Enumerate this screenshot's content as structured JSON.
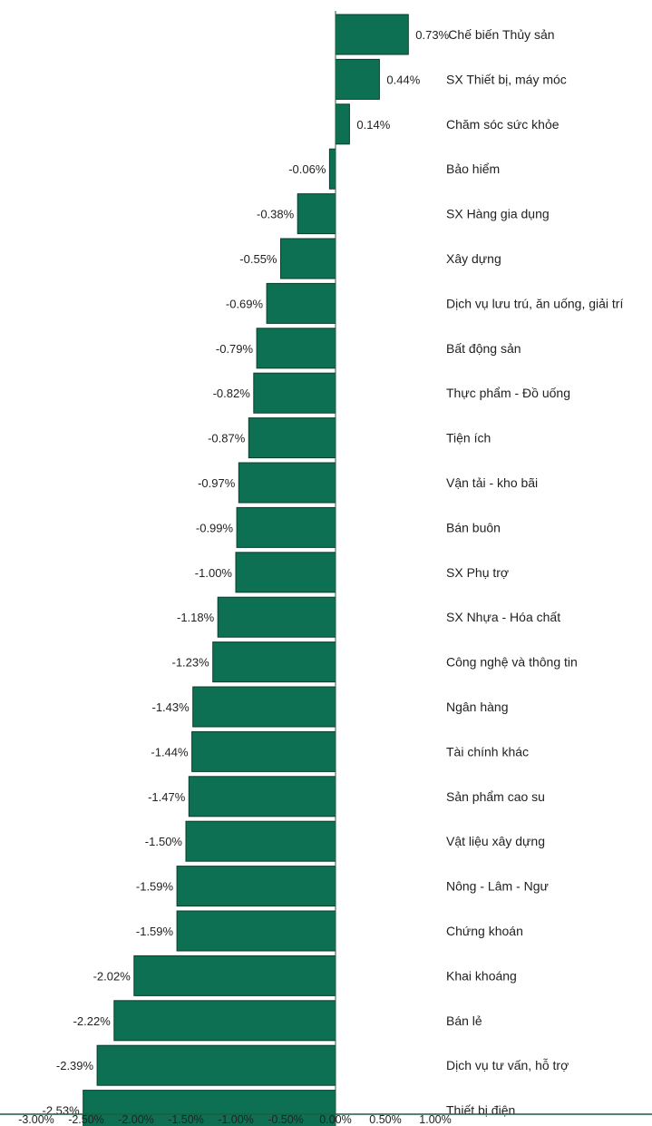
{
  "chart_data": {
    "type": "bar",
    "orientation": "horizontal",
    "categories": [
      "Chế biến Thủy sản",
      "SX Thiết bị, máy móc",
      "Chăm sóc sức khỏe",
      "Bảo hiểm",
      "SX Hàng gia dụng",
      "Xây dựng",
      "Dịch vụ lưu trú, ăn uống, giải trí",
      "Bất động sản",
      "Thực phẩm - Đồ uống",
      "Tiện ích",
      "Vận tải - kho bãi",
      "Bán buôn",
      "SX Phụ trợ",
      "SX Nhựa - Hóa chất",
      "Công nghệ và thông tin",
      "Ngân hàng",
      "Tài chính khác",
      "Sản phẩm cao su",
      "Vật liệu xây dựng",
      "Nông - Lâm - Ngư",
      "Chứng khoán",
      "Khai khoáng",
      "Bán lẻ",
      "Dịch vụ tư vấn, hỗ trợ",
      "Thiết bị điện"
    ],
    "values": [
      0.73,
      0.44,
      0.14,
      -0.06,
      -0.38,
      -0.55,
      -0.69,
      -0.79,
      -0.82,
      -0.87,
      -0.97,
      -0.99,
      -1.0,
      -1.18,
      -1.23,
      -1.43,
      -1.44,
      -1.47,
      -1.5,
      -1.59,
      -1.59,
      -2.02,
      -2.22,
      -2.39,
      -2.53
    ],
    "value_labels": [
      "0.73%",
      "0.44%",
      "0.14%",
      "-0.06%",
      "-0.38%",
      "-0.55%",
      "-0.69%",
      "-0.79%",
      "-0.82%",
      "-0.87%",
      "-0.97%",
      "-0.99%",
      "-1.00%",
      "-1.18%",
      "-1.23%",
      "-1.43%",
      "-1.44%",
      "-1.47%",
      "-1.50%",
      "-1.59%",
      "-1.59%",
      "-2.02%",
      "-2.22%",
      "-2.39%",
      "-2.53%"
    ],
    "x_ticks": [
      -3.0,
      -2.5,
      -2.0,
      -1.5,
      -1.0,
      -0.5,
      0.0,
      0.5,
      1.0
    ],
    "x_tick_labels": [
      "-3.00%",
      "-2.50%",
      "-2.00%",
      "-1.50%",
      "-1.00%",
      "-0.50%",
      "0.00%",
      "0.50%",
      "1.00%"
    ],
    "xlim": [
      -3.0,
      1.0
    ],
    "title": "",
    "xlabel": "",
    "ylabel": "",
    "grid": false,
    "colors": {
      "bar_fill": "#0d7053",
      "bar_stroke": "#0a3d2c",
      "axis": "#1f5c3f",
      "text": "#222222"
    }
  }
}
